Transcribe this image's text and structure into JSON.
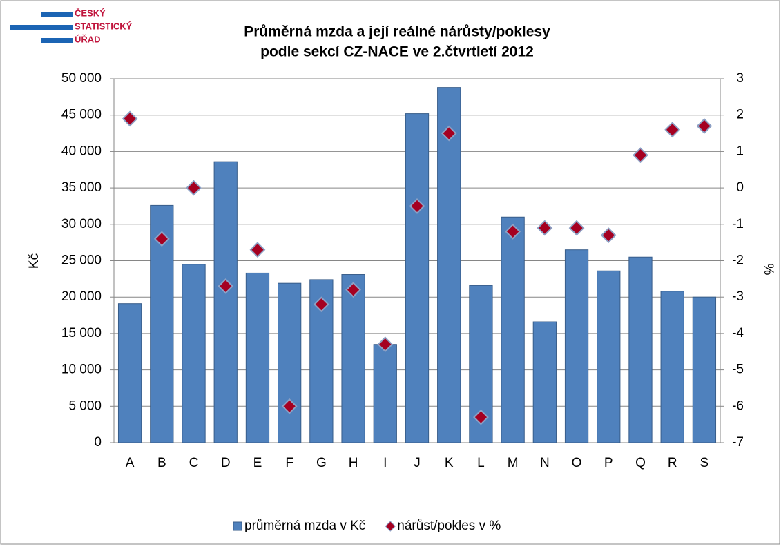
{
  "logo": [
    "ČESKÝ",
    "STATISTICKÝ",
    "ÚŘAD"
  ],
  "chart_data": {
    "type": "bar",
    "title": "Průměrná mzda a její reálné nárůsty/poklesy",
    "subtitle": "podle sekcí CZ-NACE ve 2.čtvrtletí 2012",
    "y_label": "Kč",
    "y2_label": "%",
    "categories": [
      "A",
      "B",
      "C",
      "D",
      "E",
      "F",
      "G",
      "H",
      "I",
      "J",
      "K",
      "L",
      "M",
      "N",
      "O",
      "P",
      "Q",
      "R",
      "S"
    ],
    "series": [
      {
        "name": "průměrná mzda v Kč",
        "type": "bar",
        "color": "#4f81bd",
        "values": [
          19100,
          32600,
          24500,
          38600,
          23300,
          21900,
          22400,
          23100,
          13500,
          45200,
          48800,
          21600,
          31000,
          16600,
          26500,
          23600,
          25500,
          20800,
          20000
        ]
      },
      {
        "name": "nárůst/pokles v %",
        "type": "scatter",
        "axis": "y2",
        "color": "#a50021",
        "values": [
          1.9,
          -1.4,
          0.0,
          -2.7,
          -1.7,
          -6.0,
          -3.2,
          -2.8,
          -4.3,
          -0.5,
          1.5,
          -6.3,
          -1.2,
          -1.1,
          -1.1,
          -1.3,
          0.9,
          1.6,
          1.7
        ]
      }
    ],
    "ylim": [
      0,
      50000
    ],
    "yticks": [
      0,
      {
        "value": 5000,
        "label": "5 000"
      },
      {
        "value": 10000,
        "label": "10 000"
      },
      {
        "value": 15000,
        "label": "15 000"
      },
      {
        "value": 20000,
        "label": "20 000"
      },
      {
        "value": 25000,
        "label": "25 000"
      },
      {
        "value": 30000,
        "label": "30 000"
      },
      {
        "value": 35000,
        "label": "35 000"
      },
      {
        "value": 40000,
        "label": "40 000"
      },
      {
        "value": 45000,
        "label": "45 000"
      },
      {
        "value": 50000,
        "label": "50 000"
      }
    ],
    "y2lim": [
      -7,
      3
    ],
    "y2ticks": [
      -7,
      -6,
      -5,
      -4,
      -3,
      -2,
      -1,
      0,
      1,
      2,
      3
    ],
    "grid": true,
    "legend": "bottom"
  }
}
